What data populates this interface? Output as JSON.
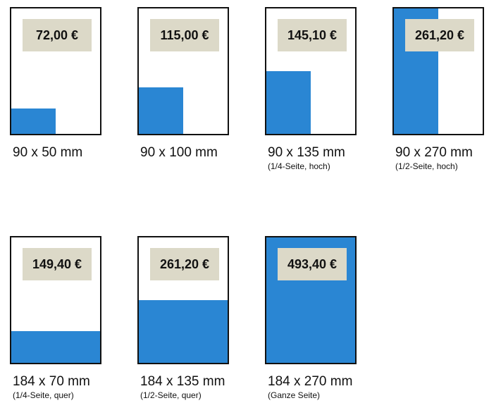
{
  "ads": [
    {
      "price": "72,00 €",
      "size": "90 x 50 mm",
      "note": "",
      "fill_fraction": {
        "width": 0.5,
        "height": 0.2
      }
    },
    {
      "price": "115,00 €",
      "size": "90 x 100 mm",
      "note": "",
      "fill_fraction": {
        "width": 0.5,
        "height": 0.37
      }
    },
    {
      "price": "145,10 €",
      "size": "90 x 135 mm",
      "note": "(1/4-Seite, hoch)",
      "fill_fraction": {
        "width": 0.5,
        "height": 0.5
      }
    },
    {
      "price": "261,20 €",
      "size": "90 x 270 mm",
      "note": "(1/2-Seite, hoch)",
      "fill_fraction": {
        "width": 0.5,
        "height": 1.0
      }
    },
    {
      "price": "149,40 €",
      "size": "184 x 70 mm",
      "note": "(1/4-Seite, quer)",
      "fill_fraction": {
        "width": 1.0,
        "height": 0.25
      }
    },
    {
      "price": "261,20 €",
      "size": "184 x 135 mm",
      "note": "(1/2-Seite, quer)",
      "fill_fraction": {
        "width": 1.0,
        "height": 0.5
      }
    },
    {
      "price": "493,40 €",
      "size": "184 x 270 mm",
      "note": "(Ganze Seite)",
      "fill_fraction": {
        "width": 1.0,
        "height": 1.0
      }
    }
  ],
  "colors": {
    "fill": "#2a86d3",
    "price_box": "#dcd9c8"
  }
}
